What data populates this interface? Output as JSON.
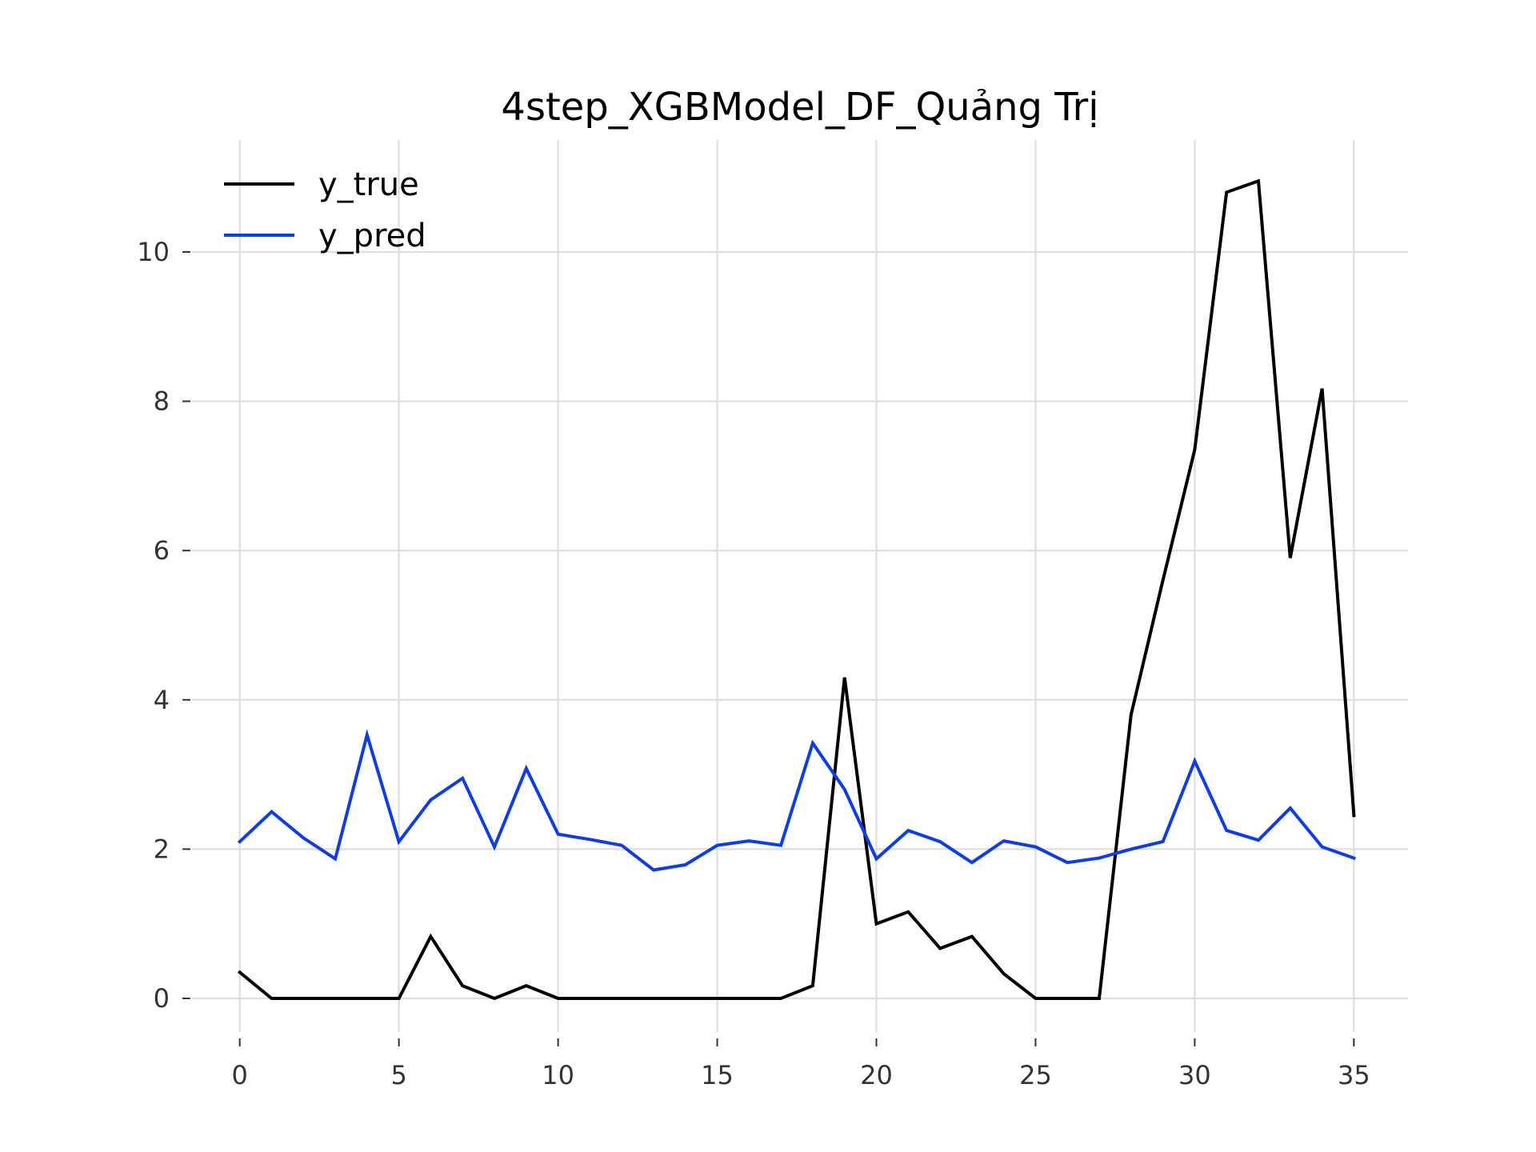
{
  "chart_data": {
    "type": "line",
    "title": "4step_XGBModel_DF_Quảng Trị",
    "xlabel": "",
    "ylabel": "",
    "x": [
      0,
      1,
      2,
      3,
      4,
      5,
      6,
      7,
      8,
      9,
      10,
      11,
      12,
      13,
      14,
      15,
      16,
      17,
      18,
      19,
      20,
      21,
      22,
      23,
      24,
      25,
      26,
      27,
      28,
      29,
      30,
      31,
      32,
      33,
      34,
      35
    ],
    "xlim": [
      -1.5,
      36.7
    ],
    "ylim": [
      -0.45,
      11.5
    ],
    "xticks": [
      0,
      5,
      10,
      15,
      20,
      25,
      30,
      35
    ],
    "yticks": [
      0,
      2,
      4,
      6,
      8,
      10
    ],
    "grid": true,
    "legend_position": "top-left",
    "series": [
      {
        "name": "y_true",
        "color": "#000000",
        "values": [
          0.35,
          0,
          0,
          0,
          0,
          0,
          0.83,
          0.17,
          0,
          0.17,
          0,
          0,
          0,
          0,
          0,
          0,
          0,
          0,
          0.17,
          4.3,
          1.0,
          1.16,
          0.67,
          0.83,
          0.33,
          0,
          0,
          0,
          3.8,
          5.6,
          7.35,
          10.8,
          10.95,
          5.9,
          8.17,
          2.45
        ]
      },
      {
        "name": "y_pred",
        "color": "#0b3cf0",
        "values": [
          2.1,
          2.5,
          2.15,
          1.87,
          3.53,
          2.1,
          2.66,
          2.95,
          2.03,
          3.08,
          2.2,
          2.13,
          2.05,
          1.72,
          1.79,
          2.05,
          2.11,
          2.05,
          3.42,
          2.8,
          1.87,
          2.25,
          2.1,
          1.82,
          2.11,
          2.03,
          1.82,
          1.88,
          2.0,
          2.1,
          3.18,
          2.25,
          2.12,
          2.55,
          2.03,
          1.88
        ]
      }
    ]
  }
}
